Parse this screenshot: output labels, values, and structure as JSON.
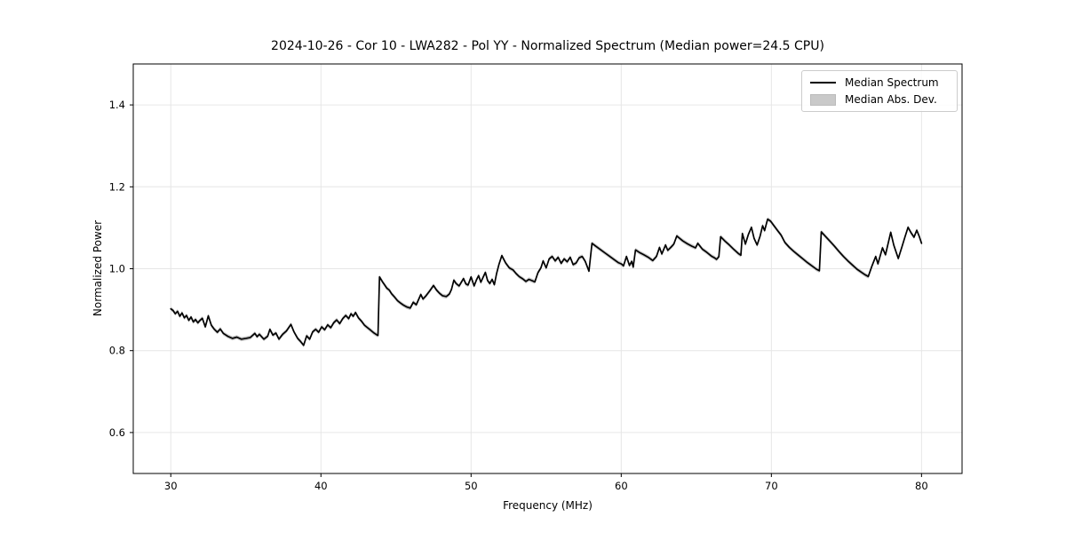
{
  "chart_data": {
    "type": "line",
    "title": "2024-10-26 - Cor 10 - LWA282 - Pol YY - Normalized Spectrum (Median power=24.5 CPU)",
    "xlabel": "Frequency (MHz)",
    "ylabel": "Normalized Power",
    "xlim": [
      27.5,
      82.7
    ],
    "ylim": [
      0.5,
      1.5
    ],
    "xticks": [
      30,
      40,
      50,
      60,
      70,
      80
    ],
    "yticks": [
      0.6,
      0.8,
      1.0,
      1.2,
      1.4
    ],
    "grid": true,
    "legend_position": "upper right",
    "legend": [
      {
        "label": "Median Spectrum",
        "type": "line",
        "color": "#000000"
      },
      {
        "label": "Median Abs. Dev.",
        "type": "patch",
        "color": "#c9c9c9"
      }
    ],
    "band": {
      "name": "Median Abs. Dev.",
      "color": "#c9c9c9",
      "half_width": 0.005
    },
    "series": [
      {
        "name": "Median Spectrum",
        "color": "#000000",
        "points": [
          [
            30.0,
            0.902
          ],
          [
            30.15,
            0.898
          ],
          [
            30.3,
            0.89
          ],
          [
            30.45,
            0.896
          ],
          [
            30.6,
            0.884
          ],
          [
            30.75,
            0.892
          ],
          [
            30.9,
            0.88
          ],
          [
            31.05,
            0.886
          ],
          [
            31.2,
            0.874
          ],
          [
            31.35,
            0.882
          ],
          [
            31.5,
            0.87
          ],
          [
            31.65,
            0.876
          ],
          [
            31.8,
            0.868
          ],
          [
            31.95,
            0.874
          ],
          [
            32.1,
            0.879
          ],
          [
            32.3,
            0.858
          ],
          [
            32.5,
            0.885
          ],
          [
            32.7,
            0.862
          ],
          [
            32.9,
            0.852
          ],
          [
            33.1,
            0.845
          ],
          [
            33.3,
            0.853
          ],
          [
            33.5,
            0.842
          ],
          [
            33.8,
            0.835
          ],
          [
            34.1,
            0.83
          ],
          [
            34.4,
            0.833
          ],
          [
            34.7,
            0.828
          ],
          [
            35.0,
            0.83
          ],
          [
            35.3,
            0.832
          ],
          [
            35.6,
            0.842
          ],
          [
            35.75,
            0.834
          ],
          [
            35.9,
            0.84
          ],
          [
            36.2,
            0.828
          ],
          [
            36.45,
            0.835
          ],
          [
            36.6,
            0.852
          ],
          [
            36.8,
            0.838
          ],
          [
            37.0,
            0.843
          ],
          [
            37.2,
            0.828
          ],
          [
            37.45,
            0.84
          ],
          [
            37.7,
            0.848
          ],
          [
            38.0,
            0.864
          ],
          [
            38.2,
            0.846
          ],
          [
            38.45,
            0.83
          ],
          [
            38.65,
            0.822
          ],
          [
            38.85,
            0.813
          ],
          [
            39.05,
            0.836
          ],
          [
            39.25,
            0.828
          ],
          [
            39.45,
            0.846
          ],
          [
            39.65,
            0.852
          ],
          [
            39.85,
            0.845
          ],
          [
            40.05,
            0.858
          ],
          [
            40.25,
            0.851
          ],
          [
            40.45,
            0.863
          ],
          [
            40.65,
            0.856
          ],
          [
            40.85,
            0.868
          ],
          [
            41.05,
            0.875
          ],
          [
            41.25,
            0.866
          ],
          [
            41.45,
            0.878
          ],
          [
            41.65,
            0.886
          ],
          [
            41.85,
            0.878
          ],
          [
            42.0,
            0.89
          ],
          [
            42.15,
            0.884
          ],
          [
            42.3,
            0.893
          ],
          [
            42.5,
            0.88
          ],
          [
            42.7,
            0.872
          ],
          [
            42.9,
            0.862
          ],
          [
            43.1,
            0.856
          ],
          [
            43.3,
            0.85
          ],
          [
            43.5,
            0.844
          ],
          [
            43.7,
            0.839
          ],
          [
            43.8,
            0.837
          ],
          [
            43.9,
            0.98
          ],
          [
            44.1,
            0.968
          ],
          [
            44.25,
            0.96
          ],
          [
            44.4,
            0.952
          ],
          [
            44.55,
            0.948
          ],
          [
            44.7,
            0.939
          ],
          [
            44.9,
            0.931
          ],
          [
            45.1,
            0.922
          ],
          [
            45.3,
            0.916
          ],
          [
            45.5,
            0.911
          ],
          [
            45.7,
            0.907
          ],
          [
            45.95,
            0.904
          ],
          [
            46.15,
            0.918
          ],
          [
            46.35,
            0.912
          ],
          [
            46.65,
            0.937
          ],
          [
            46.8,
            0.926
          ],
          [
            47.0,
            0.934
          ],
          [
            47.25,
            0.946
          ],
          [
            47.5,
            0.959
          ],
          [
            47.7,
            0.948
          ],
          [
            47.9,
            0.94
          ],
          [
            48.1,
            0.934
          ],
          [
            48.35,
            0.932
          ],
          [
            48.55,
            0.938
          ],
          [
            48.7,
            0.95
          ],
          [
            48.85,
            0.972
          ],
          [
            49.0,
            0.964
          ],
          [
            49.2,
            0.958
          ],
          [
            49.5,
            0.976
          ],
          [
            49.65,
            0.963
          ],
          [
            49.8,
            0.96
          ],
          [
            50.0,
            0.98
          ],
          [
            50.2,
            0.958
          ],
          [
            50.35,
            0.972
          ],
          [
            50.5,
            0.983
          ],
          [
            50.65,
            0.967
          ],
          [
            50.8,
            0.979
          ],
          [
            50.95,
            0.991
          ],
          [
            51.1,
            0.971
          ],
          [
            51.25,
            0.964
          ],
          [
            51.4,
            0.974
          ],
          [
            51.55,
            0.961
          ],
          [
            51.7,
            0.988
          ],
          [
            51.85,
            1.01
          ],
          [
            52.05,
            1.032
          ],
          [
            52.3,
            1.014
          ],
          [
            52.55,
            1.002
          ],
          [
            52.8,
            0.997
          ],
          [
            53.0,
            0.988
          ],
          [
            53.2,
            0.981
          ],
          [
            53.45,
            0.975
          ],
          [
            53.65,
            0.969
          ],
          [
            53.85,
            0.974
          ],
          [
            54.05,
            0.971
          ],
          [
            54.25,
            0.968
          ],
          [
            54.45,
            0.99
          ],
          [
            54.65,
            1.002
          ],
          [
            54.8,
            1.019
          ],
          [
            55.0,
            1.002
          ],
          [
            55.2,
            1.024
          ],
          [
            55.4,
            1.03
          ],
          [
            55.6,
            1.019
          ],
          [
            55.8,
            1.028
          ],
          [
            56.0,
            1.013
          ],
          [
            56.2,
            1.024
          ],
          [
            56.4,
            1.017
          ],
          [
            56.6,
            1.028
          ],
          [
            56.8,
            1.01
          ],
          [
            57.0,
            1.014
          ],
          [
            57.2,
            1.027
          ],
          [
            57.4,
            1.03
          ],
          [
            57.6,
            1.018
          ],
          [
            57.85,
            0.994
          ],
          [
            58.05,
            1.062
          ],
          [
            58.3,
            1.055
          ],
          [
            58.6,
            1.047
          ],
          [
            58.9,
            1.039
          ],
          [
            59.2,
            1.031
          ],
          [
            59.5,
            1.023
          ],
          [
            59.8,
            1.015
          ],
          [
            60.0,
            1.012
          ],
          [
            60.15,
            1.007
          ],
          [
            60.35,
            1.03
          ],
          [
            60.55,
            1.008
          ],
          [
            60.7,
            1.018
          ],
          [
            60.8,
            1.004
          ],
          [
            60.95,
            1.046
          ],
          [
            61.2,
            1.04
          ],
          [
            61.5,
            1.034
          ],
          [
            61.8,
            1.028
          ],
          [
            62.1,
            1.02
          ],
          [
            62.35,
            1.03
          ],
          [
            62.55,
            1.052
          ],
          [
            62.7,
            1.036
          ],
          [
            62.95,
            1.058
          ],
          [
            63.1,
            1.045
          ],
          [
            63.3,
            1.052
          ],
          [
            63.5,
            1.06
          ],
          [
            63.7,
            1.08
          ],
          [
            63.9,
            1.074
          ],
          [
            64.1,
            1.068
          ],
          [
            64.4,
            1.061
          ],
          [
            64.7,
            1.055
          ],
          [
            64.95,
            1.051
          ],
          [
            65.1,
            1.062
          ],
          [
            65.4,
            1.048
          ],
          [
            65.7,
            1.04
          ],
          [
            66.0,
            1.031
          ],
          [
            66.2,
            1.027
          ],
          [
            66.35,
            1.023
          ],
          [
            66.5,
            1.029
          ],
          [
            66.62,
            1.078
          ],
          [
            66.9,
            1.068
          ],
          [
            67.2,
            1.058
          ],
          [
            67.5,
            1.047
          ],
          [
            67.8,
            1.037
          ],
          [
            67.97,
            1.033
          ],
          [
            68.07,
            1.086
          ],
          [
            68.27,
            1.06
          ],
          [
            68.47,
            1.084
          ],
          [
            68.67,
            1.101
          ],
          [
            68.85,
            1.074
          ],
          [
            69.05,
            1.058
          ],
          [
            69.25,
            1.08
          ],
          [
            69.42,
            1.105
          ],
          [
            69.55,
            1.093
          ],
          [
            69.75,
            1.121
          ],
          [
            69.95,
            1.116
          ],
          [
            70.15,
            1.106
          ],
          [
            70.4,
            1.094
          ],
          [
            70.65,
            1.082
          ],
          [
            70.9,
            1.064
          ],
          [
            71.2,
            1.052
          ],
          [
            71.5,
            1.042
          ],
          [
            71.8,
            1.033
          ],
          [
            72.1,
            1.024
          ],
          [
            72.4,
            1.015
          ],
          [
            72.7,
            1.007
          ],
          [
            73.0,
            0.999
          ],
          [
            73.2,
            0.995
          ],
          [
            73.32,
            1.09
          ],
          [
            73.6,
            1.079
          ],
          [
            73.9,
            1.067
          ],
          [
            74.2,
            1.055
          ],
          [
            74.5,
            1.042
          ],
          [
            74.8,
            1.03
          ],
          [
            75.1,
            1.019
          ],
          [
            75.4,
            1.009
          ],
          [
            75.7,
            0.999
          ],
          [
            76.0,
            0.991
          ],
          [
            76.25,
            0.985
          ],
          [
            76.45,
            0.981
          ],
          [
            76.7,
            1.007
          ],
          [
            76.95,
            1.03
          ],
          [
            77.1,
            1.012
          ],
          [
            77.4,
            1.051
          ],
          [
            77.6,
            1.034
          ],
          [
            77.95,
            1.089
          ],
          [
            78.15,
            1.058
          ],
          [
            78.45,
            1.025
          ],
          [
            78.7,
            1.054
          ],
          [
            78.9,
            1.078
          ],
          [
            79.1,
            1.101
          ],
          [
            79.3,
            1.088
          ],
          [
            79.5,
            1.077
          ],
          [
            79.68,
            1.094
          ],
          [
            79.85,
            1.079
          ],
          [
            80.0,
            1.062
          ]
        ]
      }
    ]
  },
  "colors": {
    "line": "#000000",
    "band": "#c9c9c9",
    "grid": "#e6e6e6",
    "spine": "#000000",
    "background": "#ffffff",
    "text": "#000000"
  }
}
